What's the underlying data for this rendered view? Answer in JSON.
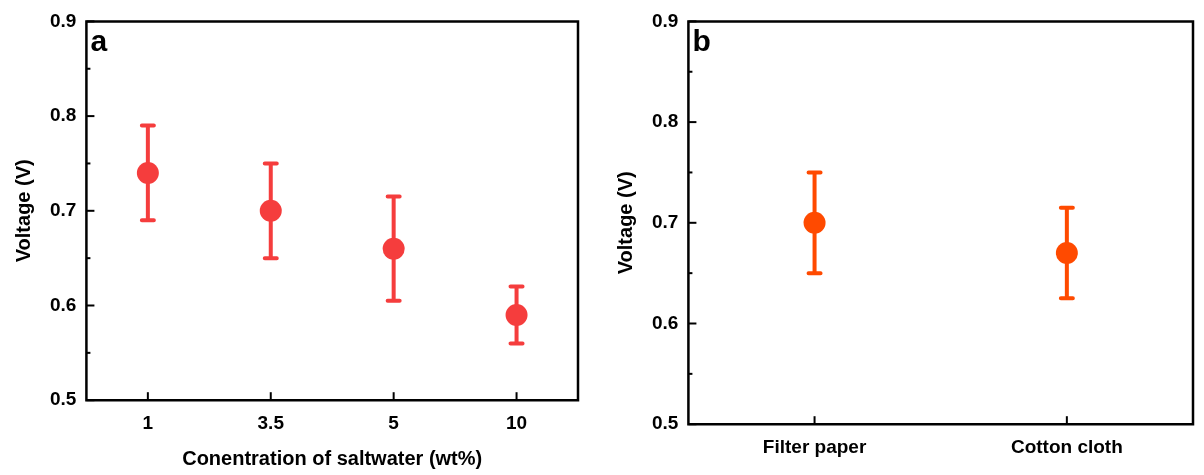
{
  "chart_data": [
    {
      "type": "scatter",
      "categories": [
        "1",
        "3.5",
        "5",
        "10"
      ],
      "xlabel": "Conentration of saltwater (wt%)",
      "ylabel": "Voltage (V)",
      "ylim": [
        0.5,
        0.9
      ],
      "yticks": [
        0.5,
        0.6,
        0.7,
        0.8,
        0.9
      ],
      "grid": false,
      "legend": false,
      "marker": "circle",
      "annotations": [
        "a"
      ],
      "series": [
        {
          "color": "#f53d3d",
          "values": [
            0.74,
            0.7,
            0.66,
            0.59
          ],
          "errors": [
            0.05,
            0.05,
            0.055,
            0.03
          ]
        }
      ]
    },
    {
      "type": "scatter",
      "categories": [
        "Filter paper",
        "Cotton cloth"
      ],
      "ylabel": "Voltage (V)",
      "ylim": [
        0.5,
        0.9
      ],
      "yticks": [
        0.5,
        0.6,
        0.7,
        0.8,
        0.9
      ],
      "grid": false,
      "legend": false,
      "marker": "circle",
      "annotations": [
        "b"
      ],
      "series": [
        {
          "color": "#ff4a00",
          "values": [
            0.7,
            0.67
          ],
          "errors": [
            0.05,
            0.045
          ]
        }
      ]
    }
  ]
}
